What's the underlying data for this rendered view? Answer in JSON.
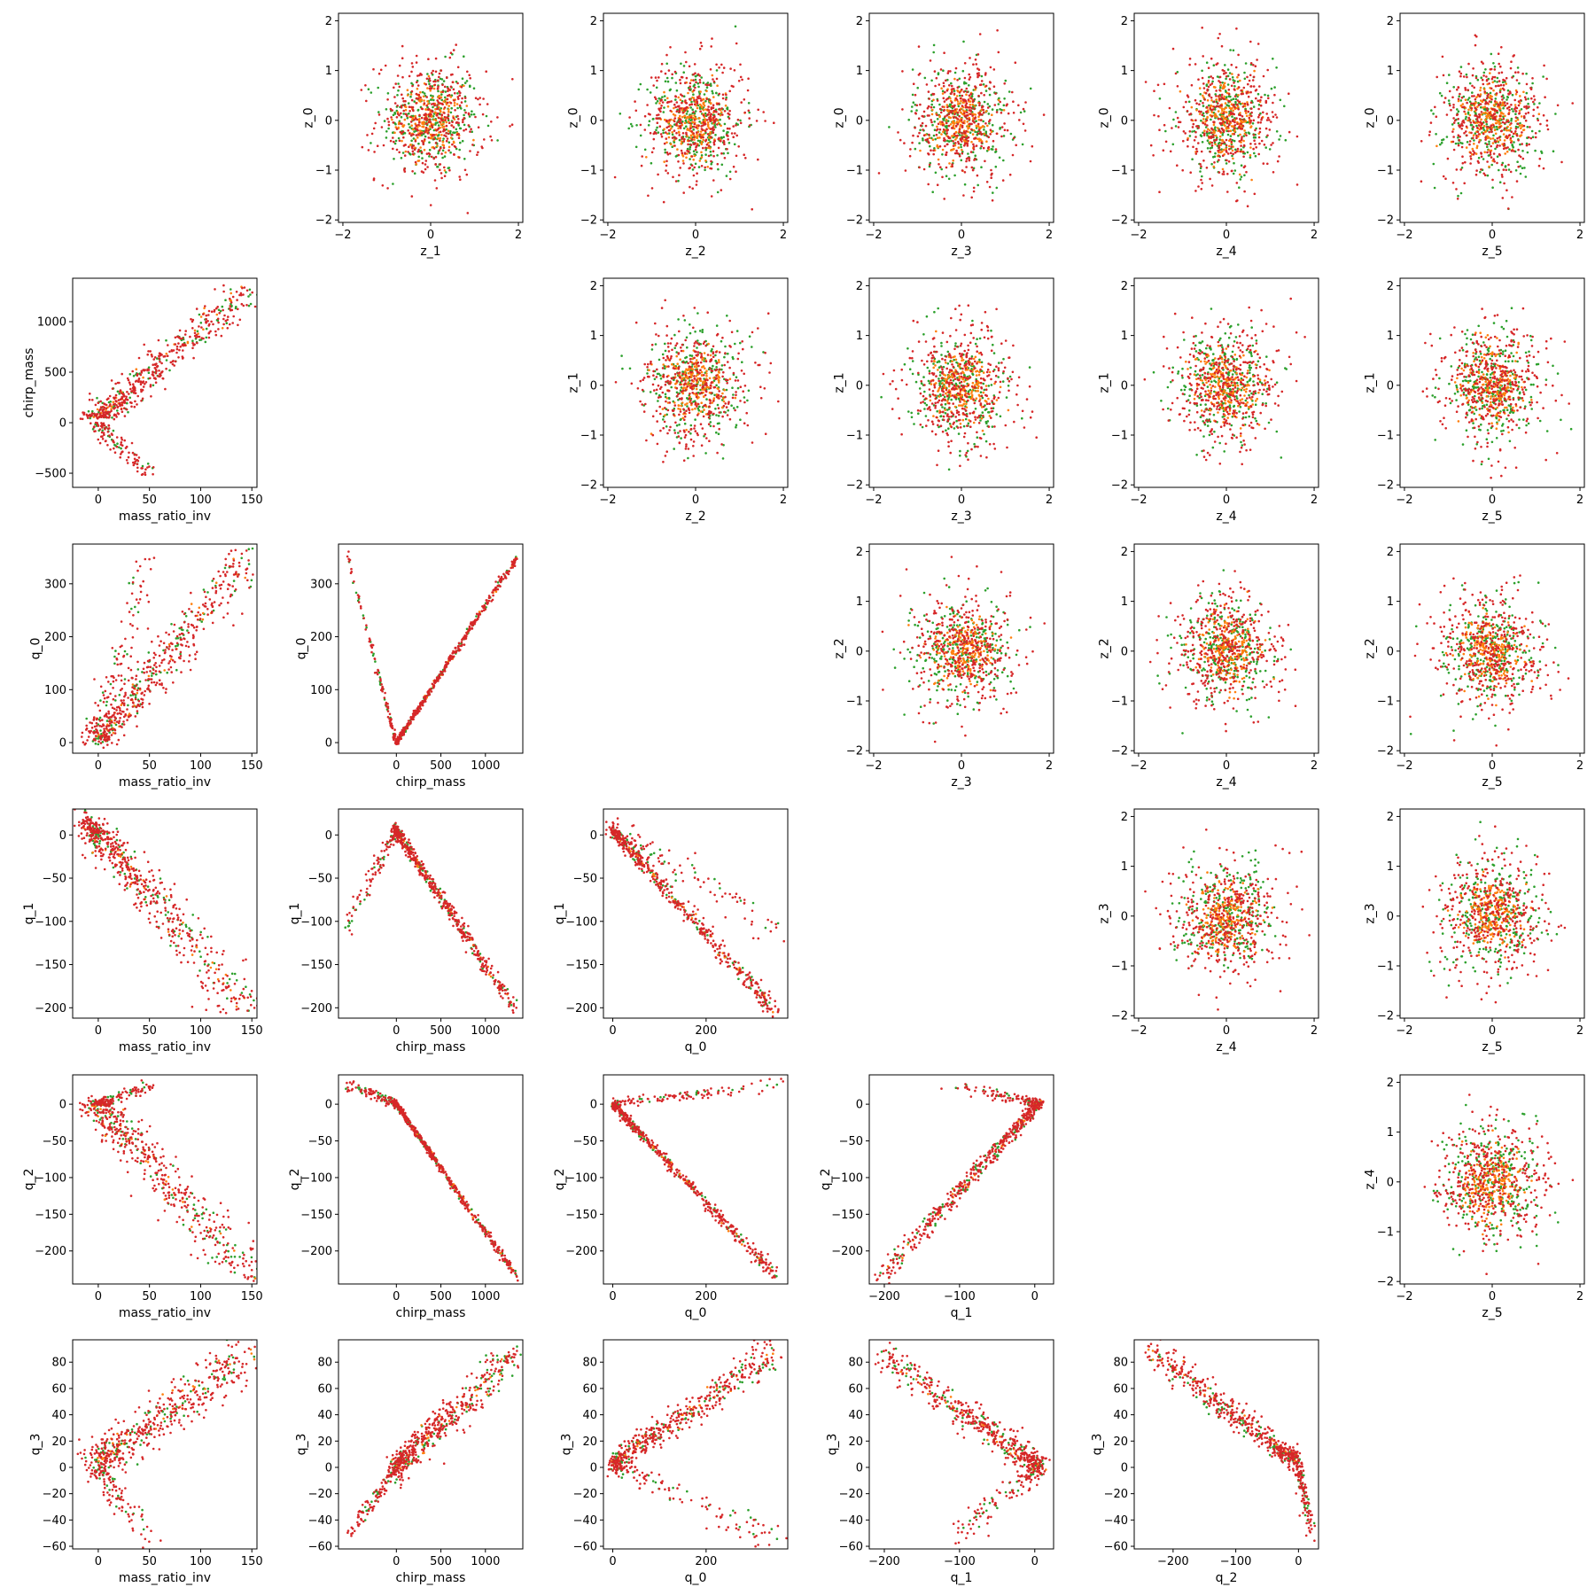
{
  "chart_data": {
    "type": "scatter",
    "layout": "lower-left and upper-right triangles of a 6x6 pair-plot grid; diagonal cells empty",
    "series_colors": {
      "c1": "#2ca02c",
      "c2": "#ff7f0e",
      "c3": "#d62728"
    },
    "marker": "dot",
    "panels": [
      {
        "row": 0,
        "col": 1,
        "xlabel": "z_1",
        "ylabel": "z_0",
        "xlim": [
          -2.1,
          2.1
        ],
        "ylim": [
          -2.05,
          2.15
        ],
        "xticks": [
          -2,
          0,
          2
        ],
        "yticks": [
          -2,
          -1,
          0,
          1,
          2
        ],
        "kind": "normal"
      },
      {
        "row": 0,
        "col": 2,
        "xlabel": "z_2",
        "ylabel": "z_0",
        "xlim": [
          -2.1,
          2.1
        ],
        "ylim": [
          -2.05,
          2.15
        ],
        "xticks": [
          -2,
          0,
          2
        ],
        "yticks": [
          -2,
          -1,
          0,
          1,
          2
        ],
        "kind": "normal"
      },
      {
        "row": 0,
        "col": 3,
        "xlabel": "z_3",
        "ylabel": "z_0",
        "xlim": [
          -2.1,
          2.1
        ],
        "ylim": [
          -2.05,
          2.15
        ],
        "xticks": [
          -2,
          0,
          2
        ],
        "yticks": [
          -2,
          -1,
          0,
          1,
          2
        ],
        "kind": "normal"
      },
      {
        "row": 0,
        "col": 4,
        "xlabel": "z_4",
        "ylabel": "z_0",
        "xlim": [
          -2.1,
          2.1
        ],
        "ylim": [
          -2.05,
          2.15
        ],
        "xticks": [
          -2,
          0,
          2
        ],
        "yticks": [
          -2,
          -1,
          0,
          1,
          2
        ],
        "kind": "normal"
      },
      {
        "row": 0,
        "col": 5,
        "xlabel": "z_5",
        "ylabel": "z_0",
        "xlim": [
          -2.1,
          2.1
        ],
        "ylim": [
          -2.05,
          2.15
        ],
        "xticks": [
          -2,
          0,
          2
        ],
        "yticks": [
          -2,
          -1,
          0,
          1,
          2
        ],
        "kind": "normal"
      },
      {
        "row": 1,
        "col": 0,
        "xlabel": "mass_ratio_inv",
        "ylabel": "chirp_mass",
        "xlim": [
          -25,
          155
        ],
        "ylim": [
          -640,
          1430
        ],
        "xticks": [
          0,
          50,
          100,
          150
        ],
        "yticks": [
          -500,
          0,
          500,
          1000
        ],
        "kind": "forked",
        "main": {
          "x0": 0,
          "y0": 50,
          "x1": 148,
          "y1": 1350,
          "spread": [
            10,
            10
          ]
        },
        "branch": {
          "x0": 0,
          "y0": 0,
          "x1": 48,
          "y1": -520,
          "spread": [
            6,
            6
          ]
        }
      },
      {
        "row": 1,
        "col": 2,
        "xlabel": "z_2",
        "ylabel": "z_1",
        "xlim": [
          -2.1,
          2.1
        ],
        "ylim": [
          -2.05,
          2.15
        ],
        "xticks": [
          -2,
          0,
          2
        ],
        "yticks": [
          -2,
          -1,
          0,
          1,
          2
        ],
        "kind": "normal"
      },
      {
        "row": 1,
        "col": 3,
        "xlabel": "z_3",
        "ylabel": "z_1",
        "xlim": [
          -2.1,
          2.1
        ],
        "ylim": [
          -2.05,
          2.15
        ],
        "xticks": [
          -2,
          0,
          2
        ],
        "yticks": [
          -2,
          -1,
          0,
          1,
          2
        ],
        "kind": "normal"
      },
      {
        "row": 1,
        "col": 4,
        "xlabel": "z_4",
        "ylabel": "z_1",
        "xlim": [
          -2.1,
          2.1
        ],
        "ylim": [
          -2.05,
          2.15
        ],
        "xticks": [
          -2,
          0,
          2
        ],
        "yticks": [
          -2,
          -1,
          0,
          1,
          2
        ],
        "kind": "normal"
      },
      {
        "row": 1,
        "col": 5,
        "xlabel": "z_5",
        "ylabel": "z_1",
        "xlim": [
          -2.1,
          2.1
        ],
        "ylim": [
          -2.05,
          2.15
        ],
        "xticks": [
          -2,
          0,
          2
        ],
        "yticks": [
          -2,
          -1,
          0,
          1,
          2
        ],
        "kind": "normal"
      },
      {
        "row": 2,
        "col": 0,
        "xlabel": "mass_ratio_inv",
        "ylabel": "q_0",
        "xlim": [
          -25,
          155
        ],
        "ylim": [
          -20,
          375
        ],
        "xticks": [
          0,
          50,
          100,
          150
        ],
        "yticks": [
          0,
          100,
          200,
          300
        ],
        "kind": "forked",
        "main": {
          "x0": 0,
          "y0": 5,
          "x1": 148,
          "y1": 350,
          "spread": [
            10,
            10
          ]
        },
        "branch": {
          "x0": 0,
          "y0": 5,
          "x1": 48,
          "y1": 360,
          "spread": [
            6,
            6
          ]
        }
      },
      {
        "row": 2,
        "col": 1,
        "xlabel": "chirp_mass",
        "ylabel": "q_0",
        "xlim": [
          -650,
          1420
        ],
        "ylim": [
          -20,
          375
        ],
        "xticks": [
          0,
          500,
          1000
        ],
        "yticks": [
          0,
          100,
          200,
          300
        ],
        "kind": "forked",
        "main": {
          "x0": 0,
          "y0": 0,
          "x1": 1350,
          "y1": 350,
          "spread": [
            10,
            2
          ]
        },
        "branch": {
          "x0": 0,
          "y0": 0,
          "x1": -560,
          "y1": 360,
          "spread": [
            8,
            2
          ]
        }
      },
      {
        "row": 2,
        "col": 3,
        "xlabel": "z_3",
        "ylabel": "z_2",
        "xlim": [
          -2.1,
          2.1
        ],
        "ylim": [
          -2.05,
          2.15
        ],
        "xticks": [
          -2,
          0,
          2
        ],
        "yticks": [
          -2,
          -1,
          0,
          1,
          2
        ],
        "kind": "normal"
      },
      {
        "row": 2,
        "col": 4,
        "xlabel": "z_4",
        "ylabel": "z_2",
        "xlim": [
          -2.1,
          2.1
        ],
        "ylim": [
          -2.05,
          2.15
        ],
        "xticks": [
          -2,
          0,
          2
        ],
        "yticks": [
          -2,
          -1,
          0,
          1,
          2
        ],
        "kind": "normal"
      },
      {
        "row": 2,
        "col": 5,
        "xlabel": "z_5",
        "ylabel": "z_2",
        "xlim": [
          -2.1,
          2.1
        ],
        "ylim": [
          -2.05,
          2.15
        ],
        "xticks": [
          -2,
          0,
          2
        ],
        "yticks": [
          -2,
          -1,
          0,
          1,
          2
        ],
        "kind": "normal"
      },
      {
        "row": 3,
        "col": 0,
        "xlabel": "mass_ratio_inv",
        "ylabel": "q_1",
        "xlim": [
          -25,
          155
        ],
        "ylim": [
          -212,
          30
        ],
        "xticks": [
          0,
          50,
          100,
          150
        ],
        "yticks": [
          -200,
          -150,
          -100,
          -50,
          0
        ],
        "kind": "forked",
        "main": {
          "x0": 0,
          "y0": 0,
          "x1": 148,
          "y1": -205,
          "spread": [
            10,
            8
          ]
        },
        "branch": {
          "x0": 0,
          "y0": 0,
          "x1": -15,
          "y1": 18,
          "spread": [
            5,
            5
          ]
        }
      },
      {
        "row": 3,
        "col": 1,
        "xlabel": "chirp_mass",
        "ylabel": "q_1",
        "xlim": [
          -650,
          1420
        ],
        "ylim": [
          -212,
          30
        ],
        "xticks": [
          0,
          500,
          1000
        ],
        "yticks": [
          -200,
          -150,
          -100,
          -50,
          0
        ],
        "kind": "forked",
        "main": {
          "x0": 0,
          "y0": 5,
          "x1": 1350,
          "y1": -205,
          "spread": [
            15,
            4
          ]
        },
        "branch": {
          "x0": 0,
          "y0": 5,
          "x1": -560,
          "y1": -105,
          "spread": [
            15,
            6
          ]
        }
      },
      {
        "row": 3,
        "col": 2,
        "xlabel": "q_0",
        "ylabel": "q_1",
        "xlim": [
          -20,
          375
        ],
        "ylim": [
          -212,
          30
        ],
        "xticks": [
          0,
          200
        ],
        "yticks": [
          -200,
          -150,
          -100,
          -50,
          0
        ],
        "kind": "forked",
        "main": {
          "x0": 0,
          "y0": 5,
          "x1": 350,
          "y1": -205,
          "spread": [
            4,
            4
          ]
        },
        "branch": {
          "x0": 0,
          "y0": 5,
          "x1": 360,
          "y1": -105,
          "spread": [
            10,
            8
          ]
        }
      },
      {
        "row": 3,
        "col": 4,
        "xlabel": "z_4",
        "ylabel": "z_3",
        "xlim": [
          -2.1,
          2.1
        ],
        "ylim": [
          -2.05,
          2.15
        ],
        "xticks": [
          -2,
          0,
          2
        ],
        "yticks": [
          -2,
          -1,
          0,
          1,
          2
        ],
        "kind": "normal"
      },
      {
        "row": 3,
        "col": 5,
        "xlabel": "z_5",
        "ylabel": "z_3",
        "xlim": [
          -2.1,
          2.1
        ],
        "ylim": [
          -2.05,
          2.15
        ],
        "xticks": [
          -2,
          0,
          2
        ],
        "yticks": [
          -2,
          -1,
          0,
          1,
          2
        ],
        "kind": "normal"
      },
      {
        "row": 4,
        "col": 0,
        "xlabel": "mass_ratio_inv",
        "ylabel": "q_2",
        "xlim": [
          -25,
          155
        ],
        "ylim": [
          -245,
          40
        ],
        "xticks": [
          0,
          50,
          100,
          150
        ],
        "yticks": [
          -200,
          -150,
          -100,
          -50,
          0
        ],
        "kind": "forked",
        "main": {
          "x0": 0,
          "y0": 0,
          "x1": 148,
          "y1": -235,
          "spread": [
            10,
            8
          ]
        },
        "branch": {
          "x0": 0,
          "y0": 0,
          "x1": 48,
          "y1": 25,
          "spread": [
            5,
            3
          ]
        }
      },
      {
        "row": 4,
        "col": 1,
        "xlabel": "chirp_mass",
        "ylabel": "q_2",
        "xlim": [
          -650,
          1420
        ],
        "ylim": [
          -245,
          40
        ],
        "xticks": [
          0,
          500,
          1000
        ],
        "yticks": [
          -200,
          -150,
          -100,
          -50,
          0
        ],
        "kind": "forked",
        "main": {
          "x0": 0,
          "y0": 0,
          "x1": 1350,
          "y1": -235,
          "spread": [
            10,
            2
          ]
        },
        "branch": {
          "x0": 0,
          "y0": 0,
          "x1": -560,
          "y1": 28,
          "spread": [
            10,
            3
          ]
        }
      },
      {
        "row": 4,
        "col": 2,
        "xlabel": "q_0",
        "ylabel": "q_2",
        "xlim": [
          -20,
          375
        ],
        "ylim": [
          -245,
          40
        ],
        "xticks": [
          0,
          200
        ],
        "yticks": [
          -200,
          -150,
          -100,
          -50,
          0
        ],
        "kind": "forked",
        "main": {
          "x0": 0,
          "y0": 0,
          "x1": 350,
          "y1": -235,
          "spread": [
            3,
            3
          ]
        },
        "branch": {
          "x0": 0,
          "y0": 0,
          "x1": 360,
          "y1": 27,
          "spread": [
            4,
            3
          ]
        }
      },
      {
        "row": 4,
        "col": 3,
        "xlabel": "q_1",
        "ylabel": "q_2",
        "xlim": [
          -220,
          25
        ],
        "ylim": [
          -245,
          40
        ],
        "xticks": [
          -200,
          -100,
          0
        ],
        "yticks": [
          -200,
          -150,
          -100,
          -50,
          0
        ],
        "kind": "forked",
        "main": {
          "x0": 5,
          "y0": 0,
          "x1": -205,
          "y1": -235,
          "spread": [
            4,
            4
          ]
        },
        "branch": {
          "x0": 5,
          "y0": 0,
          "x1": -105,
          "y1": 27,
          "spread": [
            5,
            3
          ]
        }
      },
      {
        "row": 4,
        "col": 5,
        "xlabel": "z_5",
        "ylabel": "z_4",
        "xlim": [
          -2.1,
          2.1
        ],
        "ylim": [
          -2.05,
          2.15
        ],
        "xticks": [
          -2,
          0,
          2
        ],
        "yticks": [
          -2,
          -1,
          0,
          1,
          2
        ],
        "kind": "normal"
      },
      {
        "row": 5,
        "col": 0,
        "xlabel": "mass_ratio_inv",
        "ylabel": "q_3",
        "xlim": [
          -25,
          155
        ],
        "ylim": [
          -62,
          97
        ],
        "xticks": [
          0,
          50,
          100,
          150
        ],
        "yticks": [
          -60,
          -40,
          -20,
          0,
          20,
          40,
          60,
          80
        ],
        "kind": "forked",
        "main": {
          "x0": 0,
          "y0": 5,
          "x1": 148,
          "y1": 88,
          "spread": [
            10,
            6
          ]
        },
        "branch": {
          "x0": 0,
          "y0": 0,
          "x1": 48,
          "y1": -52,
          "spread": [
            5,
            3
          ]
        }
      },
      {
        "row": 5,
        "col": 1,
        "xlabel": "chirp_mass",
        "ylabel": "q_3",
        "xlim": [
          -650,
          1420
        ],
        "ylim": [
          -62,
          97
        ],
        "xticks": [
          0,
          500,
          1000
        ],
        "yticks": [
          -60,
          -40,
          -20,
          0,
          20,
          40,
          60,
          80
        ],
        "kind": "forked",
        "main": {
          "x0": 0,
          "y0": 0,
          "x1": 1350,
          "y1": 88,
          "spread": [
            40,
            6
          ]
        },
        "branch": {
          "x0": 0,
          "y0": 0,
          "x1": -560,
          "y1": -52,
          "spread": [
            20,
            3
          ]
        }
      },
      {
        "row": 5,
        "col": 2,
        "xlabel": "q_0",
        "ylabel": "q_3",
        "xlim": [
          -20,
          375
        ],
        "ylim": [
          -62,
          97
        ],
        "xticks": [
          0,
          200
        ],
        "yticks": [
          -60,
          -40,
          -20,
          0,
          20,
          40,
          60,
          80
        ],
        "kind": "forked",
        "main": {
          "x0": 0,
          "y0": 3,
          "x1": 350,
          "y1": 88,
          "spread": [
            6,
            5
          ]
        },
        "branch": {
          "x0": 0,
          "y0": 3,
          "x1": 360,
          "y1": -55,
          "spread": [
            6,
            4
          ]
        }
      },
      {
        "row": 5,
        "col": 3,
        "xlabel": "q_1",
        "ylabel": "q_3",
        "xlim": [
          -220,
          25
        ],
        "ylim": [
          -62,
          97
        ],
        "xticks": [
          -200,
          -100,
          0
        ],
        "yticks": [
          -60,
          -40,
          -20,
          0,
          20,
          40,
          60,
          80
        ],
        "kind": "forked",
        "main": {
          "x0": 5,
          "y0": 0,
          "x1": -205,
          "y1": 88,
          "spread": [
            6,
            5
          ]
        },
        "branch": {
          "x0": 5,
          "y0": 0,
          "x1": -105,
          "y1": -52,
          "spread": [
            6,
            4
          ]
        }
      },
      {
        "row": 5,
        "col": 4,
        "xlabel": "q_2",
        "ylabel": "q_3",
        "xlim": [
          -262,
          32
        ],
        "ylim": [
          -62,
          97
        ],
        "xticks": [
          -200,
          -100,
          0
        ],
        "yticks": [
          -60,
          -40,
          -20,
          0,
          20,
          40,
          60,
          80
        ],
        "kind": "forked",
        "main": {
          "x0": -5,
          "y0": 5,
          "x1": -235,
          "y1": 88,
          "spread": [
            6,
            4
          ]
        },
        "branch": {
          "x0": 0,
          "y0": 0,
          "x1": 22,
          "y1": -52,
          "spread": [
            3,
            4
          ]
        }
      }
    ]
  }
}
